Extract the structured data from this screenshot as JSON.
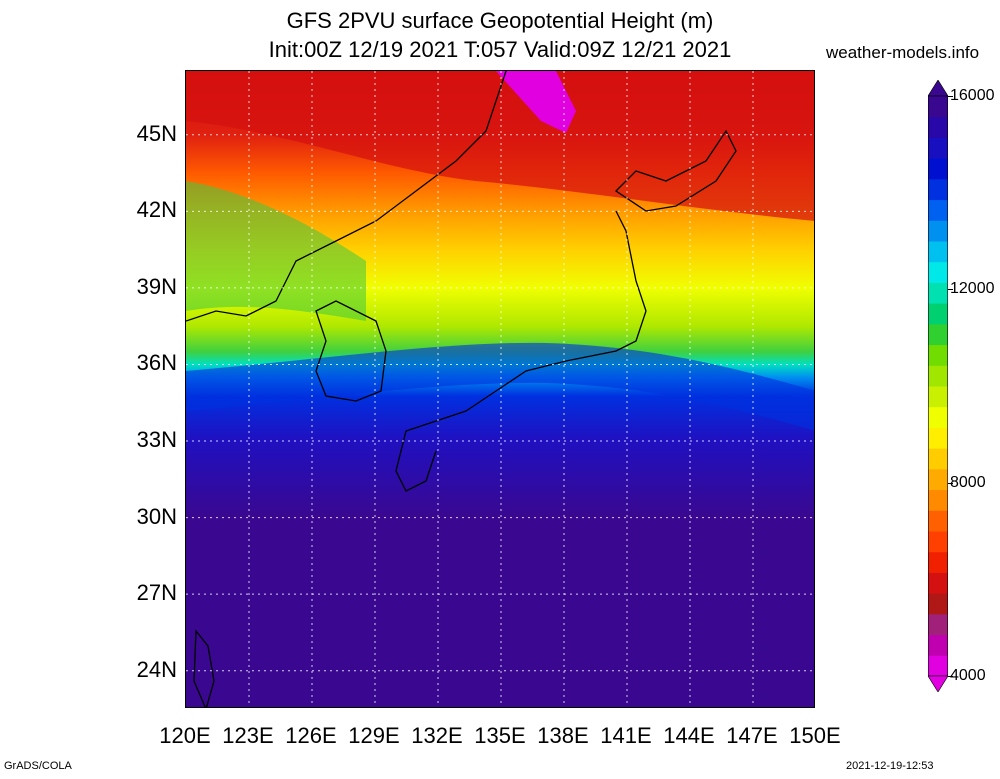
{
  "title": {
    "line1": "GFS 2PVU surface Geopotential Height (m)",
    "line2": "Init:00Z 12/19 2021 T:057 Valid:09Z 12/21 2021"
  },
  "site": "weather-models.info",
  "footer": {
    "left": "GrADS/COLA",
    "right": "2021-12-19-12:53"
  },
  "map": {
    "lon_labels": [
      "120E",
      "123E",
      "126E",
      "129E",
      "132E",
      "135E",
      "138E",
      "141E",
      "144E",
      "147E",
      "150E"
    ],
    "lat_labels": [
      "24N",
      "27N",
      "30N",
      "33N",
      "36N",
      "39N",
      "42N",
      "45N"
    ],
    "lon_range": [
      120,
      150
    ],
    "lat_range": [
      22.5,
      47.5
    ],
    "grid": true
  },
  "colorbar": {
    "labels": [
      "16000",
      "12000",
      "8000",
      "4000"
    ],
    "colors": [
      "#e000e0",
      "#c000b0",
      "#a0207a",
      "#b01818",
      "#d41010",
      "#f02000",
      "#ff4000",
      "#ff6000",
      "#ff8a00",
      "#ffaa00",
      "#ffcc00",
      "#ffee00",
      "#f0ff00",
      "#c8f000",
      "#a0e600",
      "#70dc00",
      "#30d030",
      "#00d070",
      "#00e0b0",
      "#00e8e8",
      "#00c0f0",
      "#0090f0",
      "#0060f0",
      "#0030e0",
      "#0010d0",
      "#1810c0",
      "#2808a8",
      "#3a0890"
    ]
  }
}
